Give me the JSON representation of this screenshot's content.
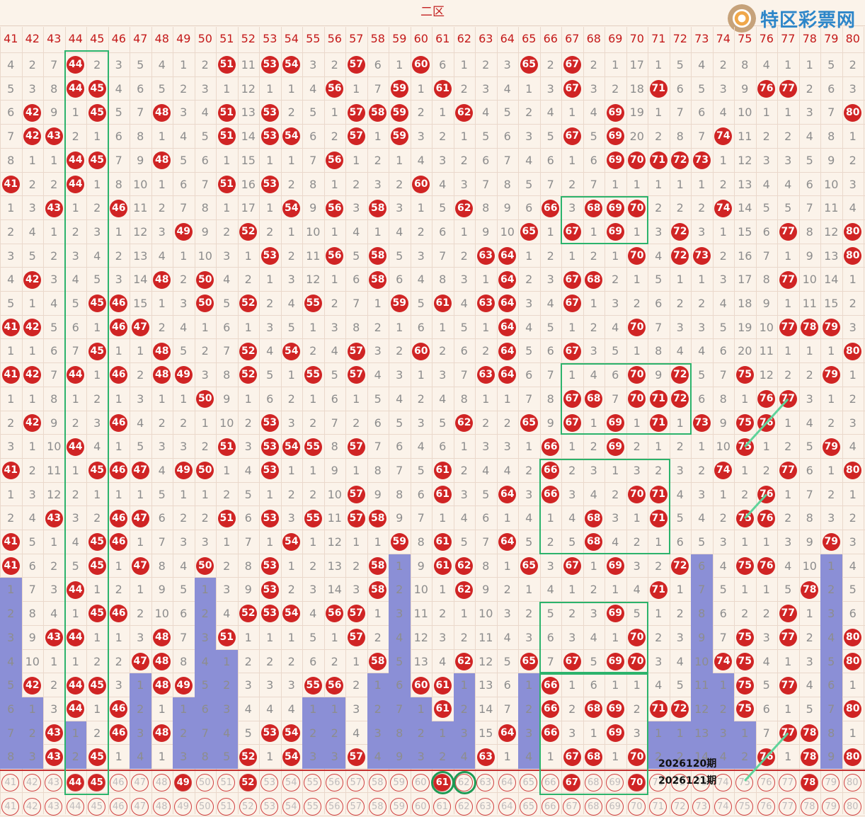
{
  "zone_label": "二区",
  "watermark": "特区彩票网",
  "issues": [
    "2026120期",
    "2026121期"
  ],
  "colors": {
    "ball": "#d02424",
    "bar": "#8b8fd6",
    "box": "#2cb36c",
    "background": "#fbf3ea"
  },
  "chart_data": {
    "type": "table",
    "columns": [
      41,
      42,
      43,
      44,
      45,
      46,
      47,
      48,
      49,
      50,
      51,
      52,
      53,
      54,
      55,
      56,
      57,
      58,
      59,
      60,
      61,
      62,
      63,
      64,
      65,
      66,
      67,
      68,
      69,
      70,
      71,
      72,
      73,
      74,
      75,
      76,
      77,
      78,
      79,
      80
    ],
    "rows": [
      [
        "4",
        "2",
        "7",
        "H",
        "2",
        "3",
        "5",
        "4",
        "1",
        "2",
        "H",
        "11",
        "H",
        "H",
        "3",
        "2",
        "H",
        "6",
        "1",
        "H",
        "6",
        "1",
        "2",
        "3",
        "H",
        "2",
        "H",
        "2",
        "1",
        "17",
        "1",
        "5",
        "4",
        "2",
        "8",
        "4",
        "1",
        "1",
        "5",
        "2"
      ],
      [
        "5",
        "3",
        "8",
        "H",
        "H",
        "4",
        "6",
        "5",
        "2",
        "3",
        "1",
        "12",
        "1",
        "1",
        "4",
        "H",
        "1",
        "7",
        "H",
        "1",
        "H",
        "2",
        "3",
        "4",
        "1",
        "3",
        "H",
        "3",
        "2",
        "18",
        "H",
        "6",
        "5",
        "3",
        "9",
        "H",
        "H",
        "2",
        "6",
        "3"
      ],
      [
        "6",
        "H",
        "9",
        "1",
        "H",
        "5",
        "7",
        "H",
        "3",
        "4",
        "H",
        "13",
        "H",
        "2",
        "5",
        "1",
        "H",
        "H",
        "H",
        "2",
        "1",
        "H",
        "4",
        "5",
        "2",
        "4",
        "1",
        "4",
        "H",
        "19",
        "1",
        "7",
        "6",
        "4",
        "10",
        "1",
        "1",
        "3",
        "7",
        "H"
      ],
      [
        "7",
        "H",
        "H",
        "2",
        "1",
        "6",
        "8",
        "1",
        "4",
        "5",
        "H",
        "14",
        "H",
        "H",
        "6",
        "2",
        "H",
        "1",
        "H",
        "3",
        "2",
        "1",
        "5",
        "6",
        "3",
        "5",
        "H",
        "5",
        "H",
        "20",
        "2",
        "8",
        "7",
        "H",
        "11",
        "2",
        "2",
        "4",
        "8",
        "1"
      ],
      [
        "8",
        "1",
        "1",
        "H",
        "H",
        "7",
        "9",
        "H",
        "5",
        "6",
        "1",
        "15",
        "1",
        "1",
        "7",
        "H",
        "1",
        "2",
        "1",
        "4",
        "3",
        "2",
        "6",
        "7",
        "4",
        "6",
        "1",
        "6",
        "H",
        "H",
        "H",
        "H",
        "H",
        "1",
        "12",
        "3",
        "3",
        "5",
        "9",
        "2"
      ],
      [
        "H",
        "2",
        "2",
        "H",
        "1",
        "8",
        "10",
        "1",
        "6",
        "7",
        "H",
        "16",
        "H",
        "2",
        "8",
        "1",
        "2",
        "3",
        "2",
        "H",
        "4",
        "3",
        "7",
        "8",
        "5",
        "7",
        "2",
        "7",
        "1",
        "1",
        "1",
        "1",
        "1",
        "2",
        "13",
        "4",
        "4",
        "6",
        "10",
        "3"
      ],
      [
        "1",
        "3",
        "H",
        "1",
        "2",
        "H",
        "11",
        "2",
        "7",
        "8",
        "1",
        "17",
        "1",
        "H",
        "9",
        "H",
        "3",
        "H",
        "3",
        "1",
        "5",
        "H",
        "8",
        "9",
        "6",
        "H",
        "3",
        "H",
        "H",
        "H",
        "2",
        "2",
        "2",
        "H",
        "14",
        "5",
        "5",
        "7",
        "11",
        "4"
      ],
      [
        "2",
        "4",
        "1",
        "2",
        "3",
        "1",
        "12",
        "3",
        "H",
        "9",
        "2",
        "H",
        "2",
        "1",
        "10",
        "1",
        "4",
        "1",
        "4",
        "2",
        "6",
        "1",
        "9",
        "10",
        "H",
        "1",
        "H",
        "1",
        "H",
        "1",
        "3",
        "H",
        "3",
        "1",
        "15",
        "6",
        "H",
        "8",
        "12",
        "H"
      ],
      [
        "3",
        "5",
        "2",
        "3",
        "4",
        "2",
        "13",
        "4",
        "1",
        "10",
        "3",
        "1",
        "H",
        "2",
        "11",
        "H",
        "5",
        "H",
        "5",
        "3",
        "7",
        "2",
        "H",
        "H",
        "1",
        "2",
        "1",
        "2",
        "1",
        "H",
        "4",
        "H",
        "H",
        "2",
        "16",
        "7",
        "1",
        "9",
        "13",
        "H"
      ],
      [
        "4",
        "H",
        "3",
        "4",
        "5",
        "3",
        "14",
        "H",
        "2",
        "H",
        "4",
        "2",
        "1",
        "3",
        "12",
        "1",
        "6",
        "H",
        "6",
        "4",
        "8",
        "3",
        "1",
        "H",
        "2",
        "3",
        "H",
        "H",
        "2",
        "1",
        "5",
        "1",
        "1",
        "3",
        "17",
        "8",
        "H",
        "10",
        "14",
        "1"
      ],
      [
        "5",
        "1",
        "4",
        "5",
        "H",
        "H",
        "15",
        "1",
        "3",
        "H",
        "5",
        "H",
        "2",
        "4",
        "H",
        "2",
        "7",
        "1",
        "H",
        "5",
        "H",
        "4",
        "H",
        "H",
        "3",
        "4",
        "H",
        "1",
        "3",
        "2",
        "6",
        "2",
        "2",
        "4",
        "18",
        "9",
        "1",
        "11",
        "15",
        "2"
      ],
      [
        "H",
        "H",
        "5",
        "6",
        "1",
        "H",
        "H",
        "2",
        "4",
        "1",
        "6",
        "1",
        "3",
        "5",
        "1",
        "3",
        "8",
        "2",
        "1",
        "6",
        "1",
        "5",
        "1",
        "H",
        "4",
        "5",
        "1",
        "2",
        "4",
        "H",
        "7",
        "3",
        "3",
        "5",
        "19",
        "10",
        "H",
        "H",
        "H",
        "3"
      ],
      [
        "1",
        "1",
        "6",
        "7",
        "H",
        "1",
        "1",
        "H",
        "5",
        "2",
        "7",
        "H",
        "4",
        "H",
        "2",
        "4",
        "H",
        "3",
        "2",
        "H",
        "2",
        "6",
        "2",
        "H",
        "5",
        "6",
        "H",
        "3",
        "5",
        "1",
        "8",
        "4",
        "4",
        "6",
        "20",
        "11",
        "1",
        "1",
        "1",
        "H"
      ],
      [
        "H",
        "H",
        "7",
        "H",
        "1",
        "H",
        "2",
        "H",
        "H",
        "3",
        "8",
        "H",
        "5",
        "1",
        "H",
        "5",
        "H",
        "4",
        "3",
        "1",
        "3",
        "7",
        "H",
        "H",
        "6",
        "7",
        "1",
        "4",
        "6",
        "H",
        "9",
        "H",
        "5",
        "7",
        "H",
        "12",
        "2",
        "2",
        "H",
        "1"
      ],
      [
        "1",
        "1",
        "8",
        "1",
        "2",
        "1",
        "3",
        "1",
        "1",
        "H",
        "9",
        "1",
        "6",
        "2",
        "1",
        "6",
        "1",
        "5",
        "4",
        "2",
        "4",
        "8",
        "1",
        "1",
        "7",
        "8",
        "H",
        "H",
        "7",
        "H",
        "H",
        "H",
        "6",
        "8",
        "1",
        "H",
        "H",
        "3",
        "1",
        "2"
      ],
      [
        "2",
        "H",
        "9",
        "2",
        "3",
        "H",
        "4",
        "2",
        "2",
        "1",
        "10",
        "2",
        "H",
        "3",
        "2",
        "7",
        "2",
        "6",
        "5",
        "3",
        "5",
        "H",
        "2",
        "2",
        "H",
        "9",
        "H",
        "1",
        "H",
        "1",
        "H",
        "1",
        "H",
        "9",
        "H",
        "H",
        "1",
        "4",
        "2",
        "3"
      ],
      [
        "3",
        "1",
        "10",
        "H",
        "4",
        "1",
        "5",
        "3",
        "3",
        "2",
        "H",
        "3",
        "H",
        "H",
        "H",
        "8",
        "H",
        "7",
        "6",
        "4",
        "6",
        "1",
        "3",
        "3",
        "1",
        "H",
        "1",
        "2",
        "H",
        "2",
        "1",
        "2",
        "1",
        "10",
        "H",
        "1",
        "2",
        "5",
        "H",
        "4"
      ],
      [
        "H",
        "2",
        "11",
        "1",
        "H",
        "H",
        "H",
        "4",
        "H",
        "H",
        "1",
        "4",
        "H",
        "1",
        "1",
        "9",
        "1",
        "8",
        "7",
        "5",
        "H",
        "2",
        "4",
        "4",
        "2",
        "H",
        "2",
        "3",
        "1",
        "3",
        "2",
        "3",
        "2",
        "H",
        "1",
        "2",
        "H",
        "6",
        "1",
        "H"
      ],
      [
        "1",
        "3",
        "12",
        "2",
        "1",
        "1",
        "1",
        "5",
        "1",
        "1",
        "2",
        "5",
        "1",
        "2",
        "2",
        "10",
        "H",
        "9",
        "8",
        "6",
        "H",
        "3",
        "5",
        "H",
        "3",
        "H",
        "3",
        "4",
        "2",
        "H",
        "H",
        "4",
        "3",
        "1",
        "2",
        "H",
        "1",
        "7",
        "2",
        "1"
      ],
      [
        "2",
        "4",
        "H",
        "3",
        "2",
        "H",
        "H",
        "6",
        "2",
        "2",
        "H",
        "6",
        "H",
        "3",
        "H",
        "11",
        "H",
        "H",
        "9",
        "7",
        "1",
        "4",
        "6",
        "1",
        "4",
        "1",
        "4",
        "H",
        "3",
        "1",
        "H",
        "5",
        "4",
        "2",
        "H",
        "H",
        "2",
        "8",
        "3",
        "2"
      ],
      [
        "H",
        "5",
        "1",
        "4",
        "H",
        "H",
        "1",
        "7",
        "3",
        "3",
        "1",
        "7",
        "1",
        "H",
        "1",
        "12",
        "1",
        "1",
        "H",
        "8",
        "H",
        "5",
        "7",
        "H",
        "5",
        "2",
        "5",
        "H",
        "4",
        "2",
        "1",
        "6",
        "5",
        "3",
        "1",
        "1",
        "3",
        "9",
        "H",
        "3"
      ],
      [
        "H",
        "6",
        "2",
        "5",
        "H",
        "1",
        "H",
        "8",
        "4",
        "H",
        "2",
        "8",
        "H",
        "1",
        "2",
        "13",
        "2",
        "H",
        "1",
        "9",
        "H",
        "H",
        "8",
        "1",
        "H",
        "3",
        "H",
        "1",
        "H",
        "3",
        "2",
        "H",
        "6",
        "4",
        "H",
        "H",
        "4",
        "10",
        "1",
        "4"
      ],
      [
        "1",
        "7",
        "3",
        "H",
        "1",
        "2",
        "1",
        "9",
        "5",
        "1",
        "3",
        "9",
        "H",
        "2",
        "3",
        "14",
        "3",
        "H",
        "2",
        "10",
        "1",
        "H",
        "9",
        "2",
        "1",
        "4",
        "1",
        "2",
        "1",
        "4",
        "H",
        "1",
        "7",
        "5",
        "1",
        "1",
        "5",
        "H",
        "2",
        "5"
      ],
      [
        "2",
        "8",
        "4",
        "1",
        "H",
        "H",
        "2",
        "10",
        "6",
        "2",
        "4",
        "H",
        "H",
        "H",
        "4",
        "H",
        "H",
        "1",
        "3",
        "11",
        "2",
        "1",
        "10",
        "3",
        "2",
        "5",
        "2",
        "3",
        "H",
        "5",
        "1",
        "2",
        "8",
        "6",
        "2",
        "2",
        "H",
        "1",
        "3",
        "6"
      ],
      [
        "3",
        "9",
        "H",
        "H",
        "1",
        "1",
        "3",
        "H",
        "7",
        "3",
        "H",
        "1",
        "1",
        "1",
        "5",
        "1",
        "H",
        "2",
        "4",
        "12",
        "3",
        "2",
        "11",
        "4",
        "3",
        "6",
        "3",
        "4",
        "1",
        "H",
        "2",
        "3",
        "9",
        "7",
        "H",
        "3",
        "H",
        "2",
        "4",
        "H"
      ],
      [
        "4",
        "10",
        "1",
        "1",
        "2",
        "2",
        "H",
        "H",
        "8",
        "4",
        "1",
        "2",
        "2",
        "2",
        "6",
        "2",
        "1",
        "H",
        "5",
        "13",
        "4",
        "H",
        "12",
        "5",
        "H",
        "7",
        "H",
        "5",
        "H",
        "H",
        "3",
        "4",
        "10",
        "H",
        "H",
        "4",
        "1",
        "3",
        "5",
        "H"
      ],
      [
        "5",
        "H",
        "2",
        "H",
        "H",
        "3",
        "1",
        "H",
        "H",
        "5",
        "2",
        "3",
        "3",
        "3",
        "H",
        "H",
        "2",
        "1",
        "6",
        "H",
        "H",
        "1",
        "13",
        "6",
        "1",
        "H",
        "1",
        "6",
        "1",
        "1",
        "4",
        "5",
        "11",
        "1",
        "H",
        "5",
        "H",
        "4",
        "6",
        "1"
      ],
      [
        "6",
        "1",
        "3",
        "H",
        "1",
        "H",
        "2",
        "1",
        "1",
        "6",
        "3",
        "4",
        "4",
        "4",
        "1",
        "1",
        "3",
        "2",
        "7",
        "1",
        "H",
        "2",
        "14",
        "7",
        "2",
        "H",
        "2",
        "H",
        "H",
        "2",
        "H",
        "H",
        "12",
        "2",
        "H",
        "6",
        "1",
        "5",
        "7",
        "H"
      ],
      [
        "7",
        "2",
        "H",
        "1",
        "2",
        "H",
        "3",
        "H",
        "2",
        "7",
        "4",
        "5",
        "H",
        "H",
        "2",
        "2",
        "4",
        "3",
        "8",
        "2",
        "1",
        "3",
        "15",
        "H",
        "3",
        "H",
        "3",
        "1",
        "H",
        "3",
        "1",
        "1",
        "13",
        "3",
        "1",
        "7",
        "H",
        "H",
        "8",
        "1"
      ],
      [
        "8",
        "3",
        "H",
        "2",
        "H",
        "1",
        "4",
        "1",
        "3",
        "8",
        "5",
        "H",
        "1",
        "H",
        "3",
        "3",
        "H",
        "4",
        "9",
        "3",
        "2",
        "4",
        "H",
        "1",
        "4",
        "1",
        "H",
        "H",
        "1",
        "H",
        "2",
        "2",
        "14",
        "4",
        "2",
        "H",
        "1",
        "H",
        "9",
        "H"
      ]
    ],
    "prediction_row": [
      44,
      45,
      49,
      52,
      61,
      67,
      70,
      78
    ],
    "bottom_row": [],
    "highlight_boxes": [
      {
        "col_start": 44,
        "col_end": 45,
        "row_start": 1,
        "row_end": 31
      },
      {
        "col_start": 67,
        "col_end": 70,
        "row_start": 7,
        "row_end": 8
      },
      {
        "col_start": 67,
        "col_end": 72,
        "row_start": 14,
        "row_end": 16
      },
      {
        "col_start": 66,
        "col_end": 71,
        "row_start": 18,
        "row_end": 21
      },
      {
        "col_start": 66,
        "col_end": 70,
        "row_start": 24,
        "row_end": 26
      },
      {
        "col_start": 66,
        "col_end": 70,
        "row_start": 27,
        "row_end": 31
      }
    ],
    "circled_columns": [
      61,
      62
    ]
  }
}
